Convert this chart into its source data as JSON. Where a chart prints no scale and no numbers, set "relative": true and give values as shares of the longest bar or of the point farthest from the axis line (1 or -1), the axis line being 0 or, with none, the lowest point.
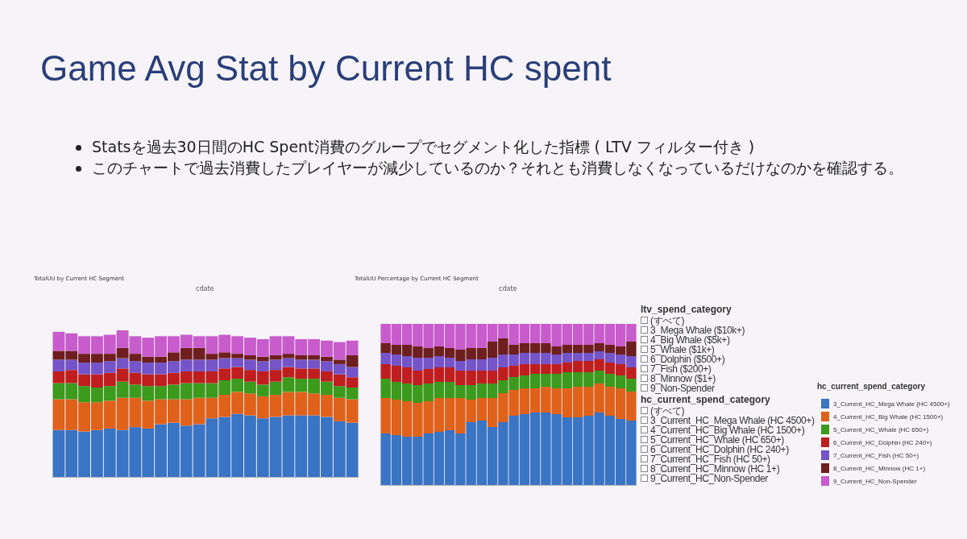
{
  "chart_data": [
    {
      "type": "other",
      "title": "Game Avg Stat by Current HC spent",
      "annotations": [
        "Statsを過去30日間のHC Spent消費のグループでセグメント化した指標 ( LTV フィルター付き )",
        "このチャートで過去消費したプレイヤーが減少しているのか？それとも消費しなくなっているだけなのかを確認する。"
      ]
    },
    {
      "type": "bar",
      "title": "TotalUU by Current HC Segment",
      "xlabel": "cdate",
      "stacked": true,
      "relative": true,
      "categories": [
        null,
        null,
        null,
        null,
        null,
        null,
        null,
        null,
        null,
        null,
        null,
        null,
        null,
        null,
        null,
        null,
        null,
        null,
        null,
        null,
        null,
        null,
        null,
        null
      ],
      "series": [
        {
          "color": "#3a74c4",
          "values": [
            0.32,
            0.32,
            0.31,
            0.32,
            0.33,
            0.32,
            0.34,
            0.33,
            0.36,
            0.37,
            0.35,
            0.36,
            0.4,
            0.41,
            0.43,
            0.42,
            0.4,
            0.41,
            0.42,
            0.42,
            0.42,
            0.41,
            0.38,
            0.37
          ]
        },
        {
          "color": "#e0611a",
          "values": [
            0.21,
            0.21,
            0.2,
            0.19,
            0.19,
            0.22,
            0.2,
            0.19,
            0.17,
            0.16,
            0.18,
            0.18,
            0.14,
            0.15,
            0.15,
            0.15,
            0.15,
            0.15,
            0.16,
            0.16,
            0.15,
            0.15,
            0.16,
            0.16
          ]
        },
        {
          "color": "#3c9a1c",
          "values": [
            0.11,
            0.11,
            0.11,
            0.1,
            0.1,
            0.11,
            0.09,
            0.1,
            0.09,
            0.1,
            0.11,
            0.1,
            0.1,
            0.1,
            0.09,
            0.08,
            0.08,
            0.09,
            0.1,
            0.09,
            0.1,
            0.09,
            0.08,
            0.08
          ]
        },
        {
          "color": "#c01e1e",
          "values": [
            0.08,
            0.09,
            0.08,
            0.09,
            0.09,
            0.09,
            0.08,
            0.08,
            0.08,
            0.08,
            0.08,
            0.08,
            0.08,
            0.08,
            0.08,
            0.08,
            0.09,
            0.08,
            0.07,
            0.07,
            0.07,
            0.07,
            0.08,
            0.07
          ]
        },
        {
          "color": "#7454c8",
          "values": [
            0.08,
            0.07,
            0.08,
            0.08,
            0.08,
            0.07,
            0.08,
            0.08,
            0.08,
            0.08,
            0.08,
            0.08,
            0.08,
            0.07,
            0.06,
            0.07,
            0.07,
            0.07,
            0.06,
            0.06,
            0.06,
            0.07,
            0.07,
            0.07
          ]
        },
        {
          "color": "#6e1e1e",
          "values": [
            0.06,
            0.06,
            0.06,
            0.06,
            0.05,
            0.07,
            0.05,
            0.04,
            0.04,
            0.06,
            0.08,
            0.08,
            0.04,
            0.04,
            0.03,
            0.03,
            0.03,
            0.03,
            0.03,
            0.03,
            0.03,
            0.03,
            0.03,
            0.08
          ]
        },
        {
          "color": "#c85ccc",
          "values": [
            0.13,
            0.12,
            0.12,
            0.12,
            0.13,
            0.12,
            0.12,
            0.13,
            0.14,
            0.11,
            0.09,
            0.08,
            0.12,
            0.12,
            0.12,
            0.12,
            0.12,
            0.13,
            0.12,
            0.11,
            0.11,
            0.11,
            0.12,
            0.1
          ]
        }
      ]
    },
    {
      "type": "bar",
      "title": "TotalUU Percentage by Current HC Segment",
      "xlabel": "cdate",
      "stacked": true,
      "relative": true,
      "legend": "right",
      "legend_title": "hc_current_spend_category",
      "annotations": [
        "ltv_spend_category",
        "(すべて)",
        "3_Mega Whale ($10k+)",
        "4_Big Whale ($5k+)",
        "5_Whale ($1k+)",
        "6_Dolphin ($500+)",
        "7_Fish ($200+)",
        "8_Minnow ($1+)",
        "9_Non-Spender",
        "hc_current_spend_category",
        "(すべて)",
        "3_Current_HC_Mega Whale (HC 4500+)",
        "4_Current_HC_Big Whale (HC 1500+)",
        "5_Current_HC_Whale (HC 650+)",
        "6_Current_HC_Dolphin (HC 240+)",
        "7_Current_HC_Fish (HC 50+)",
        "8_Current_HC_Minnow (HC 1+)",
        "9_Current_HC_Non-Spender"
      ],
      "categories": [
        null,
        null,
        null,
        null,
        null,
        null,
        null,
        null,
        null,
        null,
        null,
        null,
        null,
        null,
        null,
        null,
        null,
        null,
        null,
        null,
        null,
        null,
        null,
        null
      ],
      "series": [
        {
          "name": "3_Current_HC_Mega Whale (HC 4500+)",
          "color": "#3a74c4",
          "values": [
            0.32,
            0.31,
            0.3,
            0.3,
            0.32,
            0.33,
            0.34,
            0.32,
            0.39,
            0.4,
            0.36,
            0.39,
            0.43,
            0.44,
            0.45,
            0.45,
            0.44,
            0.42,
            0.42,
            0.43,
            0.45,
            0.43,
            0.41,
            0.4
          ]
        },
        {
          "name": "4_Current_HC_Big Whale (HC 1500+)",
          "color": "#e0611a",
          "values": [
            0.22,
            0.22,
            0.22,
            0.21,
            0.2,
            0.21,
            0.2,
            0.22,
            0.14,
            0.14,
            0.18,
            0.18,
            0.16,
            0.16,
            0.15,
            0.16,
            0.16,
            0.18,
            0.19,
            0.18,
            0.18,
            0.18,
            0.19,
            0.18
          ]
        },
        {
          "name": "5_Current_HC_Whale (HC 650+)",
          "color": "#3c9a1c",
          "values": [
            0.12,
            0.11,
            0.11,
            0.11,
            0.11,
            0.1,
            0.1,
            0.08,
            0.09,
            0.09,
            0.09,
            0.08,
            0.08,
            0.08,
            0.09,
            0.08,
            0.09,
            0.1,
            0.09,
            0.09,
            0.08,
            0.08,
            0.08,
            0.08
          ]
        },
        {
          "name": "6_Current_HC_Dolphin (HC 240+)",
          "color": "#c01e1e",
          "values": [
            0.09,
            0.1,
            0.1,
            0.09,
            0.09,
            0.09,
            0.09,
            0.09,
            0.09,
            0.08,
            0.08,
            0.08,
            0.07,
            0.07,
            0.06,
            0.06,
            0.06,
            0.06,
            0.07,
            0.07,
            0.07,
            0.07,
            0.07,
            0.07
          ]
        },
        {
          "name": "7_Current_HC_Fish (HC 50+)",
          "color": "#7454c8",
          "values": [
            0.07,
            0.07,
            0.07,
            0.08,
            0.07,
            0.07,
            0.06,
            0.06,
            0.07,
            0.07,
            0.08,
            0.08,
            0.07,
            0.07,
            0.07,
            0.07,
            0.06,
            0.06,
            0.05,
            0.05,
            0.05,
            0.06,
            0.06,
            0.07
          ]
        },
        {
          "name": "8_Current_HC_Minnow (HC 1+)",
          "color": "#6e1e1e",
          "values": [
            0.06,
            0.06,
            0.07,
            0.07,
            0.06,
            0.06,
            0.06,
            0.07,
            0.07,
            0.07,
            0.1,
            0.1,
            0.06,
            0.06,
            0.06,
            0.06,
            0.05,
            0.05,
            0.05,
            0.05,
            0.05,
            0.05,
            0.05,
            0.09
          ]
        },
        {
          "name": "9_Current_HC_Non-Spender",
          "color": "#c85ccc",
          "values": [
            0.12,
            0.13,
            0.13,
            0.14,
            0.15,
            0.14,
            0.15,
            0.16,
            0.15,
            0.15,
            0.11,
            0.09,
            0.13,
            0.12,
            0.12,
            0.12,
            0.14,
            0.13,
            0.13,
            0.13,
            0.12,
            0.13,
            0.14,
            0.11
          ]
        }
      ]
    }
  ]
}
